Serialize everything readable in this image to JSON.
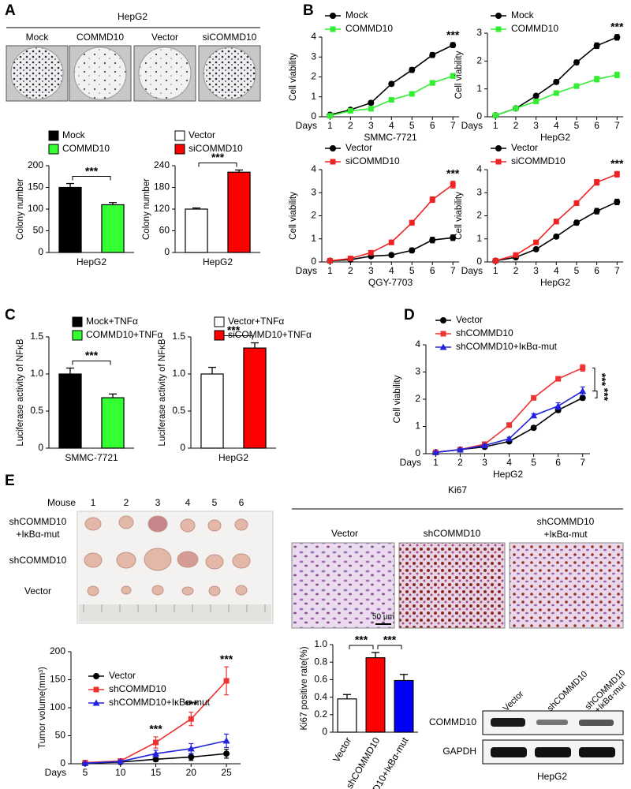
{
  "panel_labels": [
    "A",
    "B",
    "C",
    "D",
    "E"
  ],
  "colony_assay": {
    "title": "HepG2",
    "labels": [
      "Mock",
      "COMMD10",
      "Vector",
      "siCOMMD10"
    ]
  },
  "xenograft": {
    "column_title": "Mouse",
    "columns": [
      "1",
      "2",
      "3",
      "4",
      "5",
      "6"
    ],
    "rows": [
      [
        "shCOMMD10",
        "+IκBα-mut"
      ],
      [
        "shCOMMD10"
      ],
      [
        "Vector"
      ]
    ]
  },
  "ki67_staining": {
    "title": "Ki67",
    "labels": [
      [
        "Vector"
      ],
      [
        "shCOMMD10"
      ],
      [
        "shCOMMD10",
        "+IκBα-mut"
      ]
    ],
    "scale_bar": "50 μm"
  },
  "western_blot": {
    "lanes": [
      [
        "Vector"
      ],
      [
        "shCOMMD10"
      ],
      [
        "shCOMMD10",
        "+IκBα-mut"
      ]
    ],
    "proteins": [
      "COMMD10",
      "GAPDH"
    ],
    "cell_line": "HepG2"
  },
  "chart_data": [
    {
      "type": "bar",
      "ylabel": "Colony number",
      "xlabel": "HepG2",
      "ylim": [
        0,
        200
      ],
      "yticks": [
        0,
        50,
        100,
        150,
        200
      ],
      "grid": false,
      "series": [
        {
          "name": "Mock",
          "color": "#000000",
          "values": [
            150
          ],
          "errors": [
            9
          ]
        },
        {
          "name": "COMMD10",
          "color": "#33ff33",
          "values": [
            110
          ],
          "errors": [
            5
          ]
        }
      ],
      "annotations": [
        "***"
      ]
    },
    {
      "type": "bar",
      "ylabel": "Colony number",
      "xlabel": "HepG2",
      "ylim": [
        0,
        240
      ],
      "yticks": [
        0,
        60,
        120,
        180,
        240
      ],
      "grid": false,
      "series": [
        {
          "name": "Vector",
          "color": "#ffffff",
          "values": [
            120
          ],
          "errors": [
            3
          ]
        },
        {
          "name": "siCOMMD10",
          "color": "#ff0000",
          "values": [
            222
          ],
          "errors": [
            6
          ]
        }
      ],
      "annotations": [
        "***"
      ]
    },
    {
      "type": "line",
      "ylabel": "Cell viability",
      "xaxis_label": "Days",
      "xlabel": "SMMC-7721",
      "x": [
        1,
        2,
        3,
        4,
        5,
        6,
        7
      ],
      "xlim": [
        0.6,
        7.3
      ],
      "xticks": [
        1,
        2,
        3,
        4,
        5,
        6,
        7
      ],
      "ylim": [
        0,
        4
      ],
      "yticks": [
        0,
        1,
        2,
        3,
        4
      ],
      "grid": false,
      "series": [
        {
          "name": "Mock",
          "color": "#000000",
          "marker": "circle",
          "values": [
            0.1,
            0.35,
            0.7,
            1.65,
            2.35,
            3.1,
            3.6
          ],
          "errors": [
            0.05,
            0.08,
            0.1,
            0.1,
            0.12,
            0.12,
            0.12
          ]
        },
        {
          "name": "COMMD10",
          "color": "#33ee33",
          "marker": "square",
          "values": [
            0.05,
            0.3,
            0.4,
            0.85,
            1.15,
            1.7,
            2.05
          ],
          "errors": [
            0.05,
            0.05,
            0.08,
            0.1,
            0.1,
            0.12,
            0.12
          ]
        }
      ],
      "annotations": [
        "***"
      ]
    },
    {
      "type": "line",
      "ylabel": "Cell viability",
      "xaxis_label": "Days",
      "xlabel": "HepG2",
      "x": [
        1,
        2,
        3,
        4,
        5,
        6,
        7
      ],
      "xlim": [
        0.6,
        7.3
      ],
      "xticks": [
        1,
        2,
        3,
        4,
        5,
        6,
        7
      ],
      "ylim": [
        0,
        3
      ],
      "yticks": [
        0,
        1,
        2,
        3
      ],
      "grid": false,
      "series": [
        {
          "name": "Mock",
          "color": "#000000",
          "marker": "circle",
          "values": [
            0.05,
            0.3,
            0.75,
            1.25,
            1.95,
            2.55,
            2.85
          ],
          "errors": [
            0.03,
            0.05,
            0.06,
            0.08,
            0.08,
            0.1,
            0.1
          ]
        },
        {
          "name": "COMMD10",
          "color": "#33ee33",
          "marker": "square",
          "values": [
            0.05,
            0.3,
            0.55,
            0.85,
            1.1,
            1.35,
            1.5
          ],
          "errors": [
            0.03,
            0.05,
            0.06,
            0.08,
            0.08,
            0.1,
            0.1
          ]
        }
      ],
      "annotations": [
        "***"
      ]
    },
    {
      "type": "line",
      "ylabel": "Cell viability",
      "xaxis_label": "Days",
      "xlabel": "QGY-7703",
      "x": [
        1,
        2,
        3,
        4,
        5,
        6,
        7
      ],
      "xlim": [
        0.6,
        7.3
      ],
      "xticks": [
        1,
        2,
        3,
        4,
        5,
        6,
        7
      ],
      "ylim": [
        0,
        4
      ],
      "yticks": [
        0,
        1,
        2,
        3,
        4
      ],
      "grid": false,
      "series": [
        {
          "name": "Vector",
          "color": "#000000",
          "marker": "circle",
          "values": [
            0.05,
            0.1,
            0.25,
            0.3,
            0.5,
            0.95,
            1.05
          ],
          "errors": [
            0.03,
            0.05,
            0.06,
            0.08,
            0.1,
            0.12,
            0.12
          ]
        },
        {
          "name": "siCOMMD10",
          "color": "#ee2222",
          "marker": "square",
          "values": [
            0.05,
            0.15,
            0.4,
            0.85,
            1.7,
            2.7,
            3.35
          ],
          "errors": [
            0.03,
            0.05,
            0.06,
            0.1,
            0.1,
            0.12,
            0.15
          ]
        }
      ],
      "annotations": [
        "***"
      ]
    },
    {
      "type": "line",
      "ylabel": "Cell viability",
      "xaxis_label": "Days",
      "xlabel": "HepG2",
      "x": [
        1,
        2,
        3,
        4,
        5,
        6,
        7
      ],
      "xlim": [
        0.6,
        7.3
      ],
      "xticks": [
        1,
        2,
        3,
        4,
        5,
        6,
        7
      ],
      "ylim": [
        0,
        4
      ],
      "yticks": [
        0,
        1,
        2,
        3,
        4
      ],
      "grid": false,
      "series": [
        {
          "name": "Vector",
          "color": "#000000",
          "marker": "circle",
          "values": [
            0.05,
            0.2,
            0.55,
            1.1,
            1.7,
            2.2,
            2.6
          ],
          "errors": [
            0.03,
            0.05,
            0.06,
            0.08,
            0.1,
            0.12,
            0.12
          ]
        },
        {
          "name": "siCOMMD10",
          "color": "#ee2222",
          "marker": "square",
          "values": [
            0.05,
            0.3,
            0.85,
            1.75,
            2.55,
            3.45,
            3.8
          ],
          "errors": [
            0.03,
            0.05,
            0.06,
            0.1,
            0.1,
            0.12,
            0.12
          ]
        }
      ],
      "annotations": [
        "***"
      ]
    },
    {
      "type": "bar",
      "ylabel": "Luciferase activity of NFκB",
      "xlabel": "SMMC-7721",
      "ylim": [
        0,
        1.5
      ],
      "yticks": [
        0,
        0.5,
        {
          "value": 1,
          "label": "1.0"
        },
        1.5
      ],
      "grid": false,
      "series": [
        {
          "name": "Mock+TNFα",
          "color": "#000000",
          "values": [
            1.0
          ],
          "errors": [
            0.08
          ]
        },
        {
          "name": "COMMD10+TNFα",
          "color": "#33ff33",
          "values": [
            0.68
          ],
          "errors": [
            0.05
          ]
        }
      ],
      "annotations": [
        "***"
      ]
    },
    {
      "type": "bar",
      "ylabel": "Luciferase activity of NFκB",
      "xlabel": "HepG2",
      "ylim": [
        0,
        1.5
      ],
      "yticks": [
        0,
        0.5,
        {
          "value": 1,
          "label": "1.0"
        },
        1.5
      ],
      "grid": false,
      "series": [
        {
          "name": "Vector+TNFα",
          "color": "#ffffff",
          "values": [
            1.0
          ],
          "errors": [
            0.09
          ]
        },
        {
          "name": "siCOMMD10+TNFα",
          "color": "#ff0000",
          "values": [
            1.35
          ],
          "errors": [
            0.07
          ]
        }
      ],
      "annotations": [
        "***"
      ]
    },
    {
      "type": "line",
      "ylabel": "Cell viability",
      "xaxis_label": "Days",
      "xlabel": "HepG2",
      "x": [
        1,
        2,
        3,
        4,
        5,
        6,
        7
      ],
      "xlim": [
        0.6,
        7.3
      ],
      "xticks": [
        1,
        2,
        3,
        4,
        5,
        6,
        7
      ],
      "ylim": [
        0,
        4
      ],
      "yticks": [
        0,
        1,
        2,
        3,
        4
      ],
      "grid": false,
      "series": [
        {
          "name": "Vector",
          "color": "#000000",
          "marker": "circle",
          "values": [
            0.05,
            0.15,
            0.25,
            0.45,
            0.95,
            1.6,
            2.05
          ],
          "errors": [
            0.02,
            0.03,
            0.04,
            0.05,
            0.07,
            0.08,
            0.08
          ]
        },
        {
          "name": "shCOMMD10",
          "color": "#ee3333",
          "marker": "square",
          "values": [
            0.05,
            0.15,
            0.35,
            1.05,
            2.05,
            2.75,
            3.15
          ],
          "errors": [
            0.02,
            0.03,
            0.04,
            0.05,
            0.07,
            0.08,
            0.12
          ]
        },
        {
          "name": "shCOMMD10+IκBα-mut",
          "color": "#2222dd",
          "marker": "triangle",
          "values": [
            0.05,
            0.15,
            0.3,
            0.55,
            1.4,
            1.75,
            2.3
          ],
          "errors": [
            0.02,
            0.03,
            0.04,
            0.05,
            0.07,
            0.12,
            0.15
          ]
        }
      ],
      "annotations": [
        "***",
        "***"
      ]
    },
    {
      "type": "line",
      "ylabel": "Tumor volume(mm³)",
      "xaxis_label": "Days",
      "x": [
        5,
        10,
        15,
        20,
        25
      ],
      "xlim": [
        3,
        27
      ],
      "xticks": [
        5,
        10,
        15,
        20,
        25
      ],
      "ylim": [
        0,
        200
      ],
      "yticks": [
        0,
        50,
        100,
        150,
        200
      ],
      "grid": false,
      "series": [
        {
          "name": "Vector",
          "color": "#000000",
          "marker": "circle",
          "values": [
            1,
            3,
            8,
            12,
            18
          ],
          "errors": [
            1,
            2,
            4,
            6,
            8
          ]
        },
        {
          "name": "shCOMMD10",
          "color": "#ee3333",
          "marker": "square",
          "values": [
            2,
            5,
            38,
            80,
            148
          ],
          "errors": [
            1,
            3,
            10,
            12,
            25
          ]
        },
        {
          "name": "shCOMMD10+IκBα-mut",
          "color": "#2222dd",
          "marker": "triangle",
          "values": [
            1,
            4,
            18,
            27,
            41
          ],
          "errors": [
            1,
            2,
            6,
            9,
            12
          ]
        }
      ],
      "annotations": [
        "***",
        "***",
        "***"
      ]
    },
    {
      "type": "bar",
      "ylabel": "Ki67 positive rate(%)",
      "ylim": [
        0,
        1
      ],
      "yticks": [
        0,
        0.2,
        0.4,
        0.6,
        0.8,
        {
          "value": 1,
          "label": "1.0"
        }
      ],
      "grid": false,
      "categories": [
        "Vector",
        "shCOMMD10",
        "shCOMMD10+IκBα-mut"
      ],
      "values": [
        0.38,
        0.85,
        0.59
      ],
      "errors": [
        0.05,
        0.06,
        0.07
      ],
      "colors": [
        "#ffffff",
        "#ff0000",
        "#0000ff"
      ],
      "annotations": [
        "***",
        "***"
      ]
    }
  ]
}
